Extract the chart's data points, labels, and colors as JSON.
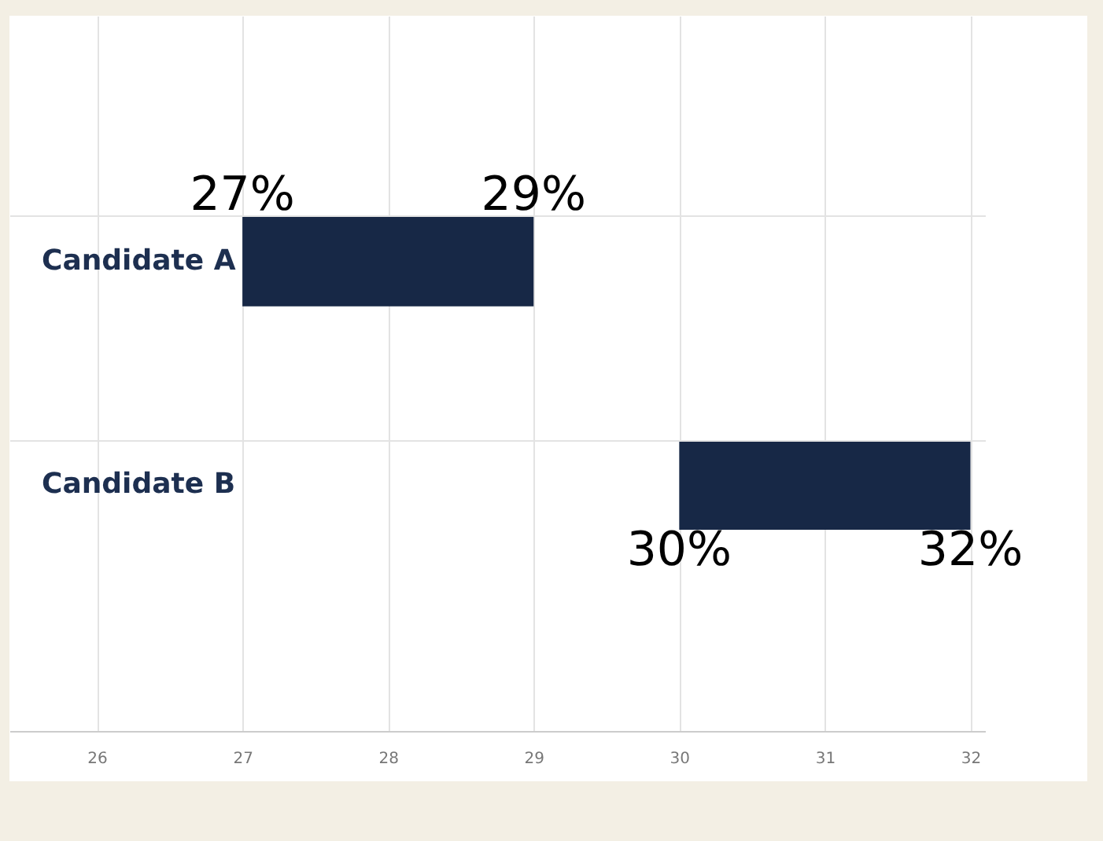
{
  "chart_data": {
    "type": "bar",
    "orientation": "horizontal",
    "categories": [
      "Candidate A",
      "Candidate B"
    ],
    "base": [
      27,
      30
    ],
    "values": [
      2,
      2
    ],
    "color": "#172846",
    "xlim": [
      25.4,
      32.1
    ],
    "xticks": [
      26,
      27,
      28,
      29,
      30,
      31,
      32
    ],
    "grid": true,
    "annotations": [
      {
        "text": "27%",
        "x": 27,
        "y": "Candidate A"
      },
      {
        "text": "29%",
        "x": 29,
        "y": "Candidate A"
      },
      {
        "text": "30%",
        "x": 30,
        "y": "Candidate B"
      },
      {
        "text": "32%",
        "x": 32,
        "y": "Candidate B"
      }
    ]
  }
}
